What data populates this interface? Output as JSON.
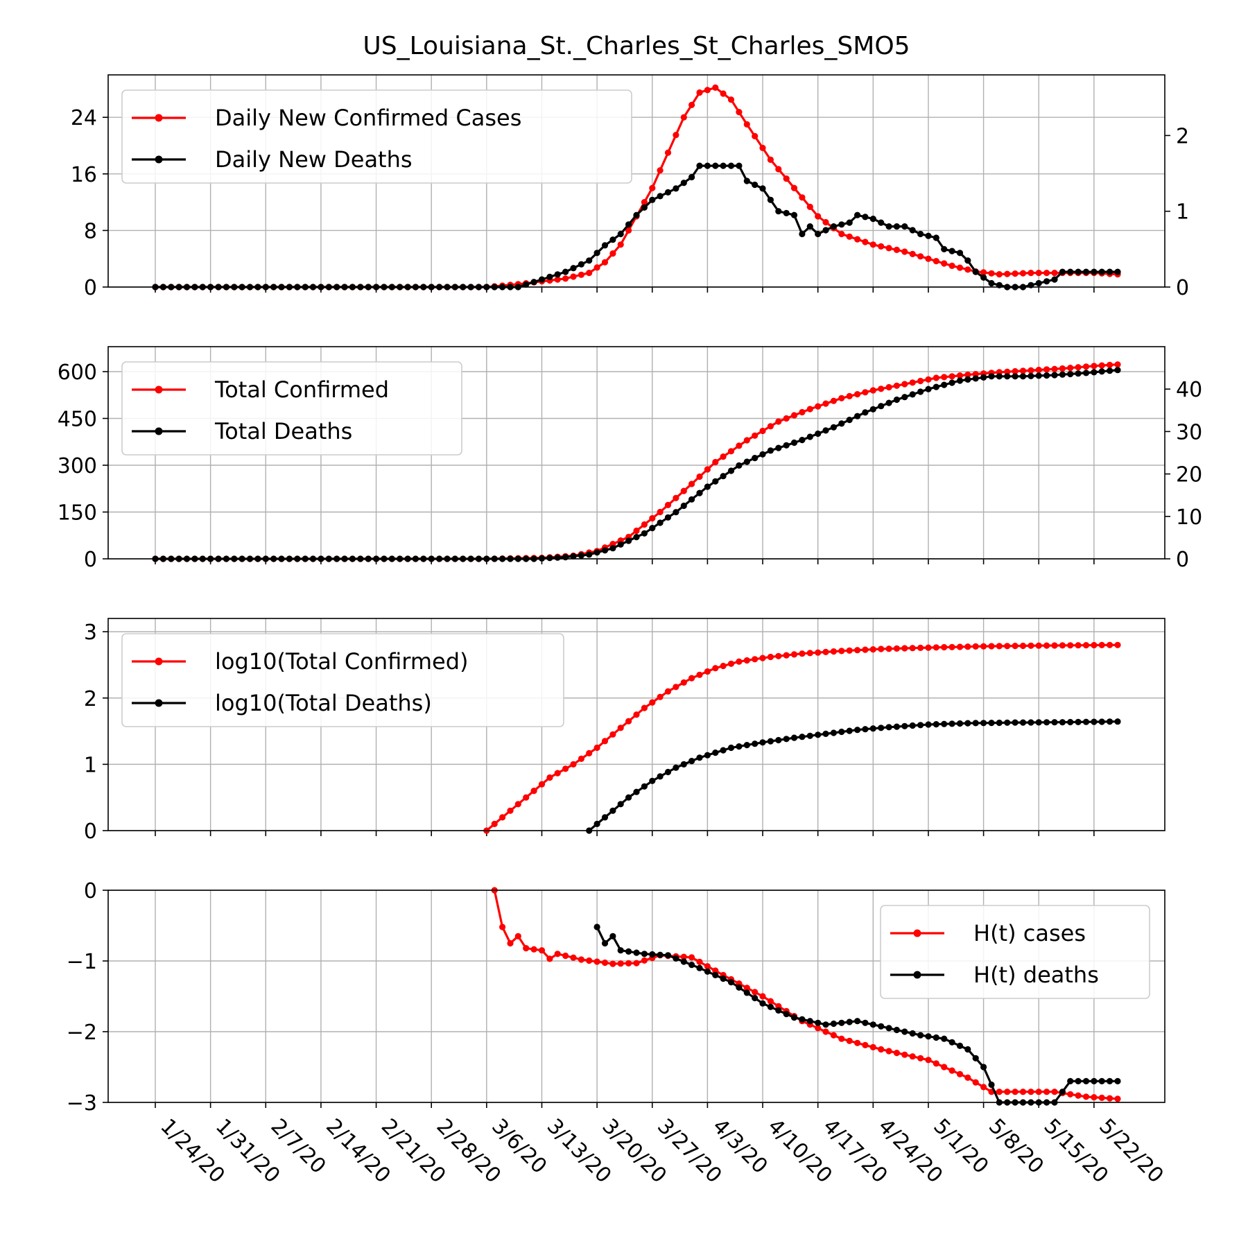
{
  "title": "US_Louisiana_St._Charles_St_Charles_SMO5",
  "colors": {
    "cases": "#ff0000",
    "deaths": "#000000",
    "grid": "#b0b0b0"
  },
  "chart_data": [
    {
      "type": "line",
      "panel": "daily",
      "x_start": "1/24/20",
      "x_end": "5/25/20",
      "xticks": [
        "1/24/20",
        "1/31/20",
        "2/7/20",
        "2/14/20",
        "2/21/20",
        "2/28/20",
        "3/6/20",
        "3/13/20",
        "3/20/20",
        "3/27/20",
        "4/3/20",
        "4/10/20",
        "4/17/20",
        "4/24/20",
        "5/1/20",
        "5/8/20",
        "5/15/20",
        "5/22/20"
      ],
      "ylim_left": [
        0,
        30
      ],
      "yticks_left": [
        0,
        8,
        16,
        24
      ],
      "ylim_right": [
        0,
        2.8
      ],
      "yticks_right": [
        0,
        1,
        2
      ],
      "legend": "top-left",
      "grid": true,
      "series": [
        {
          "name": "Daily New Confirmed Cases",
          "axis": "left",
          "color": "#ff0000",
          "points": [
            [
              "1/24/20",
              0
            ],
            [
              "2/28/20",
              0
            ],
            [
              "3/6/20",
              0
            ],
            [
              "3/10/20",
              0.4
            ],
            [
              "3/13/20",
              0.8
            ],
            [
              "3/16/20",
              1.2
            ],
            [
              "3/19/20",
              2
            ],
            [
              "3/21/20",
              3.5
            ],
            [
              "3/23/20",
              6
            ],
            [
              "3/25/20",
              10
            ],
            [
              "3/27/20",
              14
            ],
            [
              "3/29/20",
              19
            ],
            [
              "3/31/20",
              24
            ],
            [
              "4/2/20",
              27.5
            ],
            [
              "4/4/20",
              28.2
            ],
            [
              "4/6/20",
              26.5
            ],
            [
              "4/8/20",
              23
            ],
            [
              "4/11/20",
              18
            ],
            [
              "4/14/20",
              14
            ],
            [
              "4/17/20",
              10
            ],
            [
              "4/20/20",
              7.5
            ],
            [
              "4/24/20",
              6
            ],
            [
              "4/28/20",
              5
            ],
            [
              "5/1/20",
              4
            ],
            [
              "5/4/20",
              3
            ],
            [
              "5/7/20",
              2.2
            ],
            [
              "5/10/20",
              1.8
            ],
            [
              "5/14/20",
              2
            ],
            [
              "5/18/20",
              2
            ],
            [
              "5/22/20",
              2
            ],
            [
              "5/25/20",
              1.8
            ]
          ]
        },
        {
          "name": "Daily New Deaths",
          "axis": "right",
          "color": "#000000",
          "points": [
            [
              "1/24/20",
              0
            ],
            [
              "3/10/20",
              0
            ],
            [
              "3/13/20",
              0.1
            ],
            [
              "3/16/20",
              0.2
            ],
            [
              "3/19/20",
              0.35
            ],
            [
              "3/21/20",
              0.55
            ],
            [
              "3/23/20",
              0.7
            ],
            [
              "3/25/20",
              0.95
            ],
            [
              "3/27/20",
              1.15
            ],
            [
              "3/30/20",
              1.3
            ],
            [
              "4/1/20",
              1.45
            ],
            [
              "4/2/20",
              1.6
            ],
            [
              "4/4/20",
              1.6
            ],
            [
              "4/7/20",
              1.6
            ],
            [
              "4/8/20",
              1.4
            ],
            [
              "4/10/20",
              1.3
            ],
            [
              "4/12/20",
              1.0
            ],
            [
              "4/14/20",
              0.95
            ],
            [
              "4/15/20",
              0.7
            ],
            [
              "4/16/20",
              0.8
            ],
            [
              "4/17/20",
              0.7
            ],
            [
              "4/19/20",
              0.8
            ],
            [
              "4/21/20",
              0.85
            ],
            [
              "4/22/20",
              0.95
            ],
            [
              "4/24/20",
              0.9
            ],
            [
              "4/26/20",
              0.8
            ],
            [
              "4/28/20",
              0.8
            ],
            [
              "4/30/20",
              0.7
            ],
            [
              "5/2/20",
              0.65
            ],
            [
              "5/3/20",
              0.5
            ],
            [
              "5/5/20",
              0.45
            ],
            [
              "5/6/20",
              0.35
            ],
            [
              "5/7/20",
              0.2
            ],
            [
              "5/9/20",
              0.05
            ],
            [
              "5/11/20",
              0
            ],
            [
              "5/13/20",
              0
            ],
            [
              "5/15/20",
              0.05
            ],
            [
              "5/17/20",
              0.1
            ],
            [
              "5/18/20",
              0.2
            ],
            [
              "5/20/20",
              0.2
            ],
            [
              "5/22/20",
              0.2
            ],
            [
              "5/25/20",
              0.2
            ]
          ]
        }
      ]
    },
    {
      "type": "line",
      "panel": "total",
      "ylim_left": [
        0,
        680
      ],
      "yticks_left": [
        0,
        150,
        300,
        450,
        600
      ],
      "ylim_right": [
        0,
        50
      ],
      "yticks_right": [
        0,
        10,
        20,
        30,
        40
      ],
      "legend": "top-left",
      "grid": true,
      "series": [
        {
          "name": "Total Confirmed",
          "axis": "left",
          "color": "#ff0000",
          "points": [
            [
              "1/24/20",
              0
            ],
            [
              "3/6/20",
              0
            ],
            [
              "3/13/20",
              3
            ],
            [
              "3/17/20",
              10
            ],
            [
              "3/20/20",
              25
            ],
            [
              "3/24/20",
              70
            ],
            [
              "3/28/20",
              150
            ],
            [
              "4/1/20",
              240
            ],
            [
              "4/4/20",
              310
            ],
            [
              "4/8/20",
              380
            ],
            [
              "4/12/20",
              440
            ],
            [
              "4/16/20",
              480
            ],
            [
              "4/20/20",
              515
            ],
            [
              "4/24/20",
              540
            ],
            [
              "4/28/20",
              560
            ],
            [
              "5/2/20",
              580
            ],
            [
              "5/6/20",
              590
            ],
            [
              "5/10/20",
              598
            ],
            [
              "5/14/20",
              604
            ],
            [
              "5/18/20",
              610
            ],
            [
              "5/22/20",
              618
            ],
            [
              "5/25/20",
              623
            ]
          ]
        },
        {
          "name": "Total Deaths",
          "axis": "right",
          "color": "#000000",
          "points": [
            [
              "1/24/20",
              0
            ],
            [
              "3/12/20",
              0
            ],
            [
              "3/16/20",
              0.4
            ],
            [
              "3/19/20",
              1
            ],
            [
              "3/22/20",
              2.5
            ],
            [
              "3/26/20",
              6
            ],
            [
              "3/30/20",
              11
            ],
            [
              "4/3/20",
              17
            ],
            [
              "4/7/20",
              22
            ],
            [
              "4/11/20",
              25.5
            ],
            [
              "4/15/20",
              28
            ],
            [
              "4/19/20",
              31
            ],
            [
              "4/23/20",
              34.5
            ],
            [
              "4/27/20",
              37.5
            ],
            [
              "5/1/20",
              40
            ],
            [
              "5/5/20",
              42
            ],
            [
              "5/9/20",
              43
            ],
            [
              "5/13/20",
              43
            ],
            [
              "5/17/20",
              43.3
            ],
            [
              "5/21/20",
              43.8
            ],
            [
              "5/25/20",
              44.5
            ]
          ]
        }
      ]
    },
    {
      "type": "line",
      "panel": "log",
      "ylim_left": [
        0,
        3.2
      ],
      "yticks_left": [
        0,
        1,
        2,
        3
      ],
      "legend": "top-left",
      "grid": true,
      "series": [
        {
          "name": "log10(Total Confirmed)",
          "axis": "left",
          "color": "#ff0000",
          "points": [
            [
              "3/6/20",
              0
            ],
            [
              "3/8/20",
              0.2
            ],
            [
              "3/11/20",
              0.5
            ],
            [
              "3/14/20",
              0.8
            ],
            [
              "3/17/20",
              1.0
            ],
            [
              "3/20/20",
              1.25
            ],
            [
              "3/23/20",
              1.55
            ],
            [
              "3/26/20",
              1.85
            ],
            [
              "3/29/20",
              2.1
            ],
            [
              "4/1/20",
              2.3
            ],
            [
              "4/4/20",
              2.45
            ],
            [
              "4/7/20",
              2.55
            ],
            [
              "4/11/20",
              2.62
            ],
            [
              "4/15/20",
              2.67
            ],
            [
              "4/20/20",
              2.71
            ],
            [
              "4/25/20",
              2.74
            ],
            [
              "5/1/20",
              2.76
            ],
            [
              "5/8/20",
              2.78
            ],
            [
              "5/15/20",
              2.79
            ],
            [
              "5/25/20",
              2.8
            ]
          ]
        },
        {
          "name": "log10(Total Deaths)",
          "axis": "left",
          "color": "#000000",
          "points": [
            [
              "3/19/20",
              0
            ],
            [
              "3/21/20",
              0.2
            ],
            [
              "3/24/20",
              0.5
            ],
            [
              "3/27/20",
              0.75
            ],
            [
              "3/30/20",
              0.95
            ],
            [
              "4/2/20",
              1.1
            ],
            [
              "4/6/20",
              1.25
            ],
            [
              "4/10/20",
              1.33
            ],
            [
              "4/14/20",
              1.4
            ],
            [
              "4/18/20",
              1.46
            ],
            [
              "4/22/20",
              1.52
            ],
            [
              "4/26/20",
              1.56
            ],
            [
              "5/1/20",
              1.6
            ],
            [
              "5/6/20",
              1.62
            ],
            [
              "5/12/20",
              1.63
            ],
            [
              "5/18/20",
              1.635
            ],
            [
              "5/25/20",
              1.645
            ]
          ]
        }
      ]
    },
    {
      "type": "line",
      "panel": "H",
      "ylim_left": [
        -3,
        0
      ],
      "yticks_left": [
        -3,
        -2,
        -1,
        0
      ],
      "ytick_labels": [
        "−3",
        "−2",
        "−1",
        "0"
      ],
      "legend": "top-right",
      "grid": true,
      "series": [
        {
          "name": "H(t) cases",
          "axis": "left",
          "color": "#ff0000",
          "points": [
            [
              "3/7/20",
              0
            ],
            [
              "3/8/20",
              -0.52
            ],
            [
              "3/9/20",
              -0.75
            ],
            [
              "3/10/20",
              -0.65
            ],
            [
              "3/11/20",
              -0.82
            ],
            [
              "3/13/20",
              -0.85
            ],
            [
              "3/14/20",
              -0.97
            ],
            [
              "3/15/20",
              -0.9
            ],
            [
              "3/18/20",
              -0.98
            ],
            [
              "3/22/20",
              -1.04
            ],
            [
              "3/25/20",
              -1.03
            ],
            [
              "3/28/20",
              -0.92
            ],
            [
              "4/1/20",
              -0.95
            ],
            [
              "4/5/20",
              -1.2
            ],
            [
              "4/10/20",
              -1.5
            ],
            [
              "4/15/20",
              -1.85
            ],
            [
              "4/20/20",
              -2.1
            ],
            [
              "4/25/20",
              -2.25
            ],
            [
              "5/1/20",
              -2.4
            ],
            [
              "5/6/20",
              -2.65
            ],
            [
              "5/9/20",
              -2.85
            ],
            [
              "5/13/20",
              -2.85
            ],
            [
              "5/17/20",
              -2.85
            ],
            [
              "5/21/20",
              -2.92
            ],
            [
              "5/25/20",
              -2.95
            ]
          ]
        },
        {
          "name": "H(t) deaths",
          "axis": "left",
          "color": "#000000",
          "points": [
            [
              "3/20/20",
              -0.52
            ],
            [
              "3/21/20",
              -0.75
            ],
            [
              "3/22/20",
              -0.65
            ],
            [
              "3/23/20",
              -0.85
            ],
            [
              "3/26/20",
              -0.9
            ],
            [
              "3/29/20",
              -0.92
            ],
            [
              "4/2/20",
              -1.1
            ],
            [
              "4/6/20",
              -1.3
            ],
            [
              "4/10/20",
              -1.6
            ],
            [
              "4/14/20",
              -1.8
            ],
            [
              "4/18/20",
              -1.9
            ],
            [
              "4/22/20",
              -1.85
            ],
            [
              "4/26/20",
              -1.95
            ],
            [
              "4/30/20",
              -2.05
            ],
            [
              "5/3/20",
              -2.1
            ],
            [
              "5/6/20",
              -2.25
            ],
            [
              "5/8/20",
              -2.5
            ],
            [
              "5/10/20",
              -3.0
            ],
            [
              "5/13/20",
              -3.0
            ],
            [
              "5/17/20",
              -3.0
            ],
            [
              "5/19/20",
              -2.7
            ],
            [
              "5/22/20",
              -2.7
            ],
            [
              "5/25/20",
              -2.7
            ]
          ]
        }
      ]
    }
  ]
}
